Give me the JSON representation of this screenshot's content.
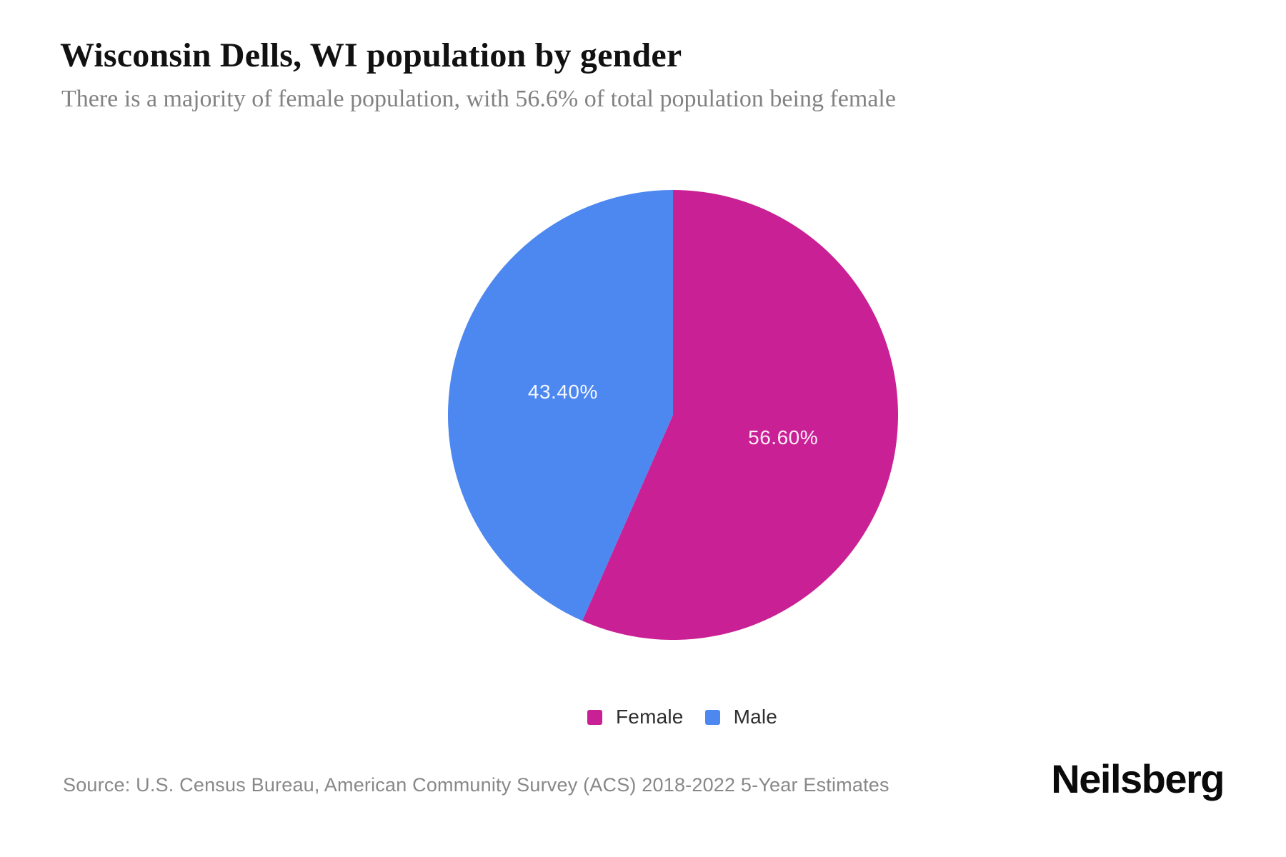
{
  "header": {
    "title": "Wisconsin Dells, WI population by gender",
    "subtitle": "There is a majority of female population, with 56.6% of total population being female"
  },
  "chart_data": {
    "type": "pie",
    "title": "Wisconsin Dells, WI population by gender",
    "slices": [
      {
        "label": "Female",
        "value": 56.6,
        "display": "56.60%",
        "color": "#ca2095"
      },
      {
        "label": "Male",
        "value": 43.4,
        "display": "43.40%",
        "color": "#4d87f0"
      }
    ],
    "start_angle_deg": 0,
    "direction": "clockwise",
    "slice_label_color": "#ffffff",
    "legend_position": "bottom",
    "legend_entries": [
      "Female",
      "Male"
    ]
  },
  "footer": {
    "source": "Source: U.S. Census Bureau, American Community Survey (ACS) 2018-2022 5-Year Estimates",
    "brand": "Neilsberg"
  }
}
